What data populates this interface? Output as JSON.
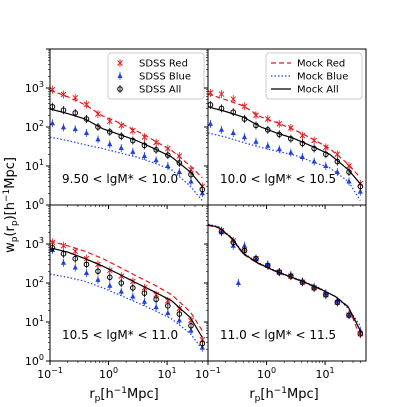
{
  "figure": {
    "ylabel": "w_p(r_p)[h^{-1}Mpc]",
    "xlabel": "r_p[h^{-1}Mpc]"
  },
  "chart_data": [
    {
      "type": "line",
      "panel": "top-left",
      "annotation": "9.50 < lgM* < 10.0",
      "xscale": "log",
      "yscale": "log",
      "xlim": [
        0.1,
        50
      ],
      "ylim": [
        1,
        10000
      ],
      "legend": {
        "placement": "top-right",
        "entries": [
          {
            "label": "SDSS Red",
            "color": "#e31a1c",
            "marker": "x"
          },
          {
            "label": "SDSS Blue",
            "color": "#1f3fe0",
            "marker": "^"
          },
          {
            "label": "SDSS All",
            "color": "#000000",
            "marker": "o"
          }
        ]
      },
      "series": [
        {
          "name": "SDSS Red",
          "kind": "points",
          "marker": "x",
          "color": "#e31a1c",
          "x": [
            0.11,
            0.17,
            0.27,
            0.42,
            0.66,
            1.05,
            1.65,
            2.6,
            4.1,
            6.5,
            10.3,
            16.2,
            25.6,
            40
          ],
          "y": [
            900,
            680,
            560,
            380,
            215,
            140,
            110,
            80,
            55,
            40,
            28,
            18,
            8,
            3
          ]
        },
        {
          "name": "SDSS Blue",
          "kind": "points",
          "marker": "^",
          "color": "#1f3fe0",
          "x": [
            0.11,
            0.17,
            0.27,
            0.42,
            0.66,
            1.05,
            1.65,
            2.6,
            4.1,
            6.5,
            10.3,
            16.2,
            25.6,
            40
          ],
          "y": [
            125,
            98,
            88,
            70,
            48,
            36,
            29,
            23,
            18,
            14,
            10,
            7,
            4,
            2
          ]
        },
        {
          "name": "SDSS All",
          "kind": "points",
          "marker": "o",
          "color": "#000000",
          "x": [
            0.11,
            0.17,
            0.27,
            0.42,
            0.66,
            1.05,
            1.65,
            2.6,
            4.1,
            6.5,
            10.3,
            16.2,
            25.6,
            40
          ],
          "y": [
            330,
            270,
            230,
            160,
            100,
            75,
            58,
            45,
            34,
            26,
            19,
            12,
            6,
            2.5
          ]
        },
        {
          "name": "Mock Red",
          "kind": "line",
          "dash": "dashed",
          "color": "#e31a1c",
          "x": [
            0.1,
            0.2,
            0.4,
            0.8,
            1.5,
            3,
            6,
            12,
            25,
            40
          ],
          "y": [
            880,
            600,
            370,
            190,
            130,
            80,
            45,
            25,
            10,
            5
          ]
        },
        {
          "name": "Mock Blue",
          "kind": "line",
          "dash": "dotted",
          "color": "#1f3fe0",
          "x": [
            0.1,
            0.2,
            0.4,
            0.8,
            1.5,
            3,
            6,
            12,
            25,
            40
          ],
          "y": [
            55,
            45,
            35,
            28,
            22,
            17,
            12,
            8,
            3,
            1.3
          ]
        },
        {
          "name": "Mock All",
          "kind": "line",
          "dash": "solid",
          "color": "#000000",
          "x": [
            0.1,
            0.2,
            0.4,
            0.8,
            1.5,
            3,
            6,
            12,
            25,
            40
          ],
          "y": [
            290,
            220,
            160,
            90,
            65,
            45,
            28,
            17,
            7,
            3
          ]
        }
      ]
    },
    {
      "type": "line",
      "panel": "top-right",
      "annotation": "10.0 < lgM* < 10.5",
      "xscale": "log",
      "yscale": "log",
      "xlim": [
        0.1,
        50
      ],
      "ylim": [
        1,
        10000
      ],
      "legend": {
        "placement": "top-right",
        "entries": [
          {
            "label": "Mock Red",
            "color": "#e31a1c",
            "dash": "dashed"
          },
          {
            "label": "Mock Blue",
            "color": "#1f3fe0",
            "dash": "dotted"
          },
          {
            "label": "Mock All",
            "color": "#000000",
            "dash": "solid"
          }
        ]
      },
      "series": [
        {
          "name": "SDSS Red",
          "kind": "points",
          "marker": "x",
          "color": "#e31a1c",
          "x": [
            0.11,
            0.17,
            0.27,
            0.42,
            0.66,
            1.05,
            1.65,
            2.6,
            4.1,
            6.5,
            10.3,
            16.2,
            25.6,
            40
          ],
          "y": [
            750,
            700,
            520,
            340,
            200,
            160,
            120,
            95,
            60,
            45,
            30,
            20,
            10,
            3.5
          ]
        },
        {
          "name": "SDSS Blue",
          "kind": "points",
          "marker": "^",
          "color": "#1f3fe0",
          "x": [
            0.11,
            0.17,
            0.27,
            0.42,
            0.66,
            1.05,
            1.65,
            2.6,
            4.1,
            6.5,
            10.3,
            16.2,
            25.6,
            40
          ],
          "y": [
            120,
            85,
            70,
            55,
            42,
            33,
            27,
            22,
            17,
            13,
            10,
            7,
            4,
            2.2
          ]
        },
        {
          "name": "SDSS All",
          "kind": "points",
          "marker": "o",
          "color": "#000000",
          "x": [
            0.11,
            0.17,
            0.27,
            0.42,
            0.66,
            1.05,
            1.65,
            2.6,
            4.1,
            6.5,
            10.3,
            16.2,
            25.6,
            40
          ],
          "y": [
            370,
            300,
            240,
            160,
            110,
            85,
            65,
            50,
            38,
            28,
            20,
            13,
            7,
            3
          ]
        },
        {
          "name": "Mock Red",
          "kind": "line",
          "dash": "dashed",
          "color": "#e31a1c",
          "x": [
            0.1,
            0.2,
            0.4,
            0.8,
            1.5,
            3,
            6,
            12,
            25,
            40
          ],
          "y": [
            700,
            500,
            350,
            180,
            130,
            85,
            50,
            28,
            11,
            5
          ]
        },
        {
          "name": "Mock Blue",
          "kind": "line",
          "dash": "dotted",
          "color": "#1f3fe0",
          "x": [
            0.1,
            0.2,
            0.4,
            0.8,
            1.5,
            3,
            6,
            12,
            25,
            40
          ],
          "y": [
            70,
            55,
            40,
            30,
            24,
            19,
            13,
            9,
            4,
            1.3
          ]
        },
        {
          "name": "Mock All",
          "kind": "line",
          "dash": "solid",
          "color": "#000000",
          "x": [
            0.1,
            0.2,
            0.4,
            0.8,
            1.5,
            3,
            6,
            12,
            25,
            40
          ],
          "y": [
            330,
            250,
            180,
            100,
            70,
            50,
            32,
            20,
            8,
            3.5
          ]
        }
      ]
    },
    {
      "type": "line",
      "panel": "bottom-left",
      "annotation": "10.5 < lgM* < 11.0",
      "xscale": "log",
      "yscale": "log",
      "xlim": [
        0.1,
        50
      ],
      "ylim": [
        1,
        10000
      ],
      "series": [
        {
          "name": "SDSS Red",
          "kind": "points",
          "marker": "x",
          "color": "#e31a1c",
          "x": [
            0.11,
            0.17,
            0.27,
            0.42,
            0.66,
            1.05,
            1.65,
            2.6,
            4.1,
            6.5,
            10.3,
            16.2,
            25.6,
            40
          ],
          "y": [
            1100,
            900,
            650,
            420,
            300,
            210,
            150,
            110,
            75,
            50,
            35,
            22,
            11,
            3.5
          ]
        },
        {
          "name": "SDSS Blue",
          "kind": "points",
          "marker": "^",
          "color": "#1f3fe0",
          "x": [
            0.11,
            0.17,
            0.27,
            0.42,
            0.66,
            1.05,
            1.65,
            2.6,
            4.1,
            6.5,
            10.3,
            16.2,
            25.6,
            40
          ],
          "y": [
            700,
            330,
            250,
            180,
            120,
            85,
            60,
            45,
            33,
            24,
            17,
            11,
            6,
            2.2
          ]
        },
        {
          "name": "SDSS All",
          "kind": "points",
          "marker": "o",
          "color": "#000000",
          "x": [
            0.11,
            0.17,
            0.27,
            0.42,
            0.66,
            1.05,
            1.65,
            2.6,
            4.1,
            6.5,
            10.3,
            16.2,
            25.6,
            40
          ],
          "y": [
            800,
            560,
            420,
            300,
            200,
            140,
            100,
            75,
            55,
            38,
            26,
            16,
            8,
            2.8
          ]
        },
        {
          "name": "Mock Red",
          "kind": "line",
          "dash": "dashed",
          "color": "#e31a1c",
          "x": [
            0.1,
            0.2,
            0.4,
            0.8,
            1.5,
            3,
            6,
            12,
            25,
            40
          ],
          "y": [
            1200,
            900,
            650,
            420,
            260,
            150,
            90,
            50,
            18,
            6
          ]
        },
        {
          "name": "Mock Blue",
          "kind": "line",
          "dash": "dotted",
          "color": "#1f3fe0",
          "x": [
            0.1,
            0.2,
            0.4,
            0.8,
            1.5,
            3,
            6,
            12,
            25,
            40
          ],
          "y": [
            170,
            140,
            110,
            75,
            50,
            32,
            20,
            12,
            5,
            2
          ]
        },
        {
          "name": "Mock All",
          "kind": "line",
          "dash": "solid",
          "color": "#000000",
          "x": [
            0.1,
            0.2,
            0.4,
            0.8,
            1.5,
            3,
            6,
            12,
            25,
            40
          ],
          "y": [
            800,
            620,
            420,
            270,
            170,
            100,
            60,
            35,
            13,
            4
          ]
        }
      ]
    },
    {
      "type": "line",
      "panel": "bottom-right",
      "annotation": "11.0 < lgM* < 11.5",
      "xscale": "log",
      "yscale": "log",
      "xlim": [
        0.1,
        50
      ],
      "ylim": [
        1,
        10000
      ],
      "series": [
        {
          "name": "SDSS Red",
          "kind": "points",
          "marker": "x",
          "color": "#e31a1c",
          "x": [
            0.17,
            0.27,
            0.42,
            0.66,
            1.05,
            1.65,
            2.6,
            4.1,
            6.5,
            10.3,
            16.2,
            25.6,
            40
          ],
          "y": [
            2200,
            1200,
            700,
            420,
            280,
            190,
            150,
            105,
            75,
            50,
            32,
            15,
            5
          ]
        },
        {
          "name": "SDSS Blue",
          "kind": "points",
          "marker": "^",
          "color": "#1f3fe0",
          "x": [
            0.17,
            0.27,
            0.33,
            0.42,
            0.66,
            1.05,
            1.65,
            2.6,
            4.1,
            6.5,
            10.3,
            16.2,
            25.6,
            40
          ],
          "y": [
            2000,
            900,
            100,
            900,
            420,
            300,
            190,
            160,
            110,
            80,
            55,
            35,
            15,
            6
          ]
        },
        {
          "name": "SDSS All",
          "kind": "points",
          "marker": "o",
          "color": "#000000",
          "x": [
            0.17,
            0.27,
            0.42,
            0.66,
            1.05,
            1.65,
            2.6,
            4.1,
            6.5,
            10.3,
            16.2,
            25.6,
            40
          ],
          "y": [
            2100,
            1100,
            680,
            420,
            280,
            190,
            150,
            105,
            75,
            50,
            32,
            15,
            5
          ]
        },
        {
          "name": "Mock Red",
          "kind": "line",
          "dash": "dashed",
          "color": "#e31a1c",
          "x": [
            0.1,
            0.15,
            0.25,
            0.4,
            0.7,
            1.2,
            2,
            4,
            8,
            15,
            25,
            40
          ],
          "y": [
            3000,
            2600,
            1400,
            550,
            320,
            220,
            160,
            110,
            70,
            45,
            25,
            4
          ]
        },
        {
          "name": "Mock Blue",
          "kind": "line",
          "dash": "dotted",
          "color": "#1f3fe0",
          "x": [
            0.1,
            0.15,
            0.25,
            0.4,
            0.7,
            1.2,
            2,
            4,
            8,
            15,
            25,
            40
          ],
          "y": [
            3200,
            2800,
            1500,
            600,
            340,
            230,
            170,
            115,
            75,
            45,
            22,
            8
          ]
        },
        {
          "name": "Mock All",
          "kind": "line",
          "dash": "solid",
          "color": "#000000",
          "x": [
            0.1,
            0.15,
            0.25,
            0.4,
            0.7,
            1.2,
            2,
            4,
            8,
            15,
            25,
            40
          ],
          "y": [
            3100,
            2700,
            1450,
            570,
            330,
            225,
            165,
            112,
            72,
            45,
            24,
            6
          ]
        }
      ]
    }
  ]
}
